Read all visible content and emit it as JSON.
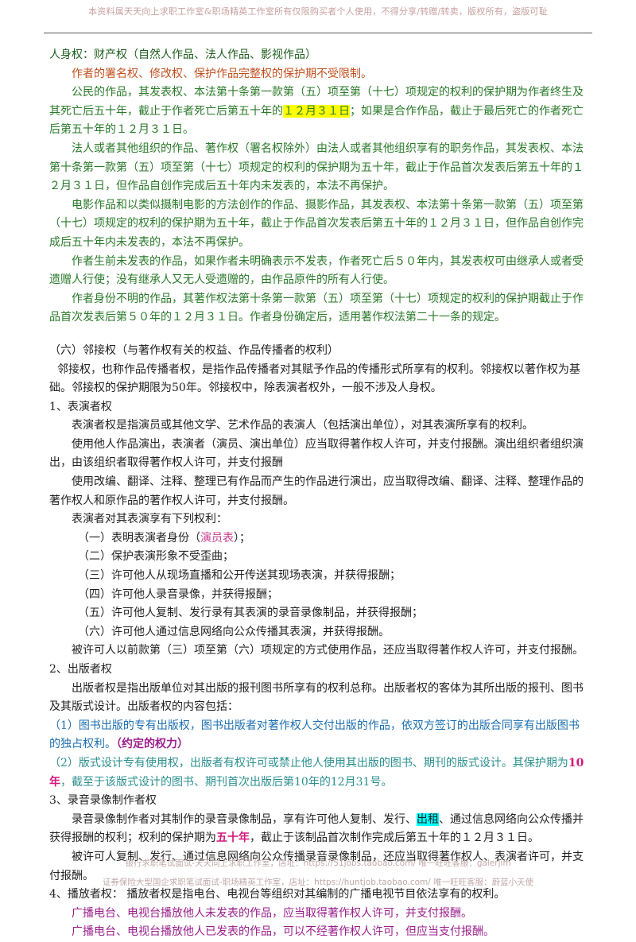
{
  "header": "本资料属天天向上求职工作室&职场精英工作室所有仅限购买者个人使用，不得分享/转赠/转卖，版权所有，盗版可耻",
  "lines": {
    "l01": "人身权：财产权（自然人作品、法人作品、影视作品）",
    "l02": "作者的署名权、修改权、保护作品完整权的保护期不受限制。",
    "l03a": "公民的作品，其发表权、本法第十条第一款第（五）项至第（十七）项规定的权利的保护期为作者终生及其死亡后五十年，截止于作者死亡后第五十年的",
    "l03b": "１２月３１日",
    "l03c": "；如果是合作作品，截止于最后死亡的作者死亡后第五十年的１２月３１日。",
    "l04": "法人或者其他组织的作品、著作权（署名权除外）由法人或者其他组织享有的职务作品，其发表权、本法第十条第一款第（五）项至第（十七）项规定的权利的保护期为五十年，截止于作品首次发表后第五十年的１２月３１日，但作品自创作完成后五十年内未发表的，本法不再保护。",
    "l05": "电影作品和以类似摄制电影的方法创作的作品、摄影作品，其发表权、本法第十条第一款第（五）项至第（十七）项规定的权利的保护期为五十年，截止于作品首次发表后第五十年的１２月３１日，但作品自创作完成后五十年内未发表的，本法不再保护。",
    "l06": "作者生前未发表的作品，如果作者未明确表示不发表，作者死亡后５０年内，其发表权可由继承人或者受遗赠人行使；没有继承人又无人受遗赠的，由作品原件的所有人行使。",
    "l07": "作者身份不明的作品，其著作权法第十条第一款第（五）项至第（十七）项规定的权利的保护期截止于作品首次发表后第５０年的１２月３１日。作者身份确定后，适用著作权法第二十一条的规定。",
    "l08": "（六）邻接权（与著作权有关的权益、作品传播者的权利）",
    "l09": "邻接权，也称作品传播者权，是指作品传播者对其赋予作品的传播形式所享有的权利。邻接权以著作权为基础。邻接权的保护期限为50年。邻接权中，除表演者权外，一般不涉及人身权。",
    "l10": "1、表演者权",
    "l11": "表演者权是指演员或其他文学、艺术作品的表演人（包括演出单位），对其表演所享有的权利。",
    "l12": "使用他人作品演出，表演者（演员、演出单位）应当取得著作权人许可，并支付报酬。演出组织者组织演出，由该组织者取得著作权人许可，并支付报酬",
    "l13": "使用改编、翻译、注释、整理已有作品而产生的作品进行演出，应当取得改编、翻译、注释、整理作品的著作权人和原作品的著作权人许可，并支付报酬。",
    "l14": "表演者对其表演享有下列权利：",
    "r1a": "（一）表明表演者身份（",
    "r1b": "演员表",
    "r1c": "）；",
    "r2": "（二）保护表演形象不受歪曲；",
    "r3": "（三）许可他人从现场直播和公开传送其现场表演，并获得报酬；",
    "r4": "（四）许可他人录音录像，并获得报酬；",
    "r5": "（五）许可他人复制、发行录有其表演的录音录像制品，并获得报酬；",
    "r6": "（六）许可他人通过信息网络向公众传播其表演，并获得报酬。",
    "l15": "被许可人以前款第（三）项至第（六）项规定的方式使用作品，还应当取得著作权人许可，并支付报酬。",
    "l16": "2、出版者权",
    "l17": "出版者权是指出版单位对其出版的报刊图书所享有的权利总称。出版者权的客体为其所出版的报刊、图书及其版式设计。出版者权的内容包括：",
    "l18a": "（1）图书出版的专有出版权，图书出版者对著作权人交付出版的作品，依双方签订的出版合同享有出版图书的独占权利。",
    "l18b": "（约定的权力）",
    "l19a": "（2）版式设计专有使用权，出版者有权许可或禁止他人使用其出版的图书、期刊的版式设计。其保护期为",
    "l19b": "10年",
    "l19c": "，截至于该版式设计的图书、期刊首次出版后第10年的12月31号。",
    "l20": "3、录音录像制作者权",
    "l21a": "录音录像制作者对其制作的录音录像制品，享有许可他人复制、发行、",
    "l21b": "出租",
    "l21c": "、通过信息网络向公众传播并获得报酬的权利；权利的保护期为",
    "l21d": "五十年",
    "l21e": "，截止于该制品首次制作完成后第五十年的１２月３１日。",
    "l22": "被许可人复制、发行、通过信息网络向公众传播录音录像制品，还应当取得著作权人、表演者许可，并支付报酬。",
    "l23": "4、播放者权：  播放者权是指电台、电视台等组织对其编制的广播电视节目依法享有的权利。",
    "l24": "广播电台、电视台播放他人未发表的作品，应当取得著作权人许可，并支付报酬。",
    "l25": "广播电台、电视台播放他人已发表的作品，可以不经著作权人许可，但应当支付报酬。"
  },
  "footer1": "银行求职笔试面试-天天向上求职工作室，店址：https://51jobs.taobao.com/ 唯一旺旺客服：galerjim",
  "footer2": "证券保险大型国企求职笔试面试-职场精英工作室，店址：https://huntjob.taobao.com/ 唯一旺旺客服：蔚蓝小天使",
  "colors": {
    "green": "#2a7a2a",
    "orange": "#c0501e",
    "purple": "#9a1e8c",
    "blue": "#1c6fb0",
    "highlight_yellow": "#ffff00",
    "highlight_cyan": "#00ffff"
  }
}
